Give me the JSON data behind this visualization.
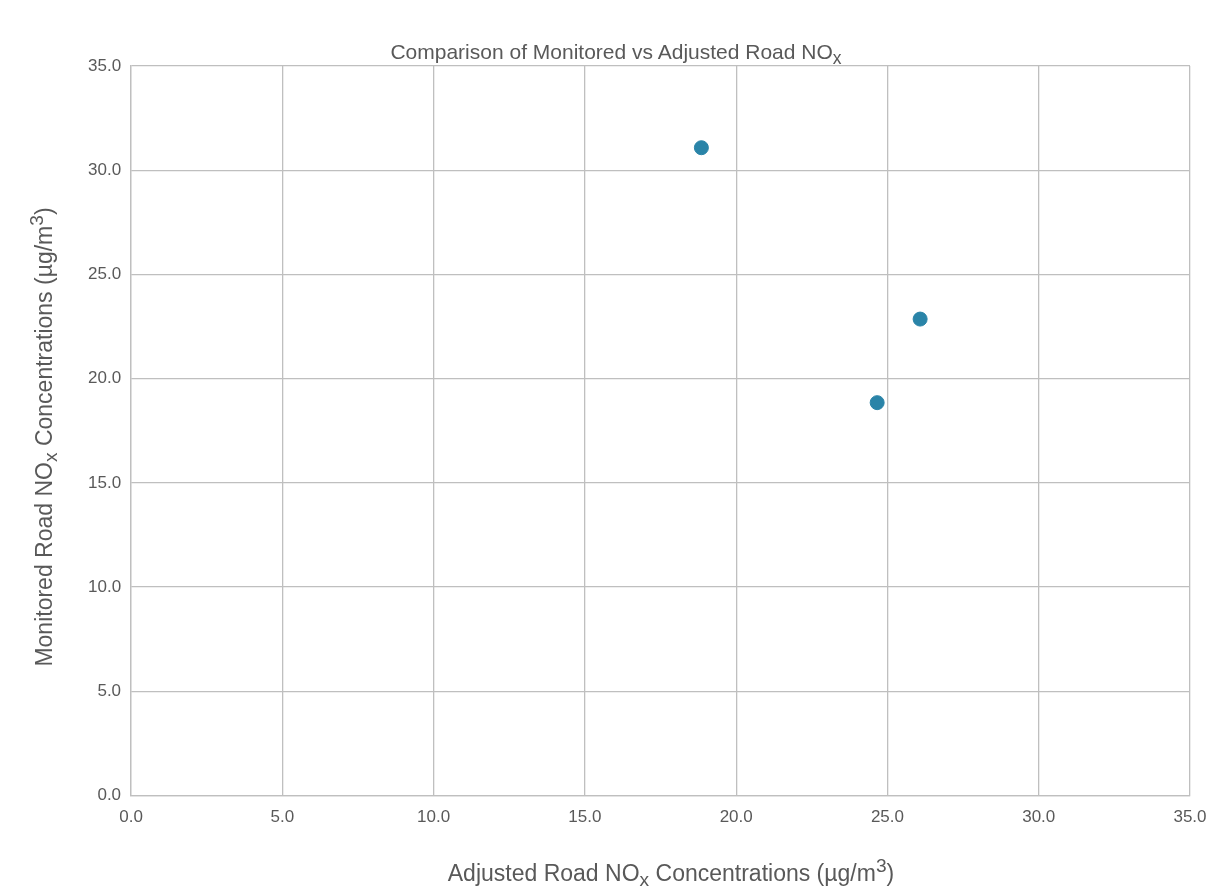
{
  "chart_data": {
    "type": "scatter",
    "title": "Comparison of Monitored vs Adjusted Road NO$_{x}$",
    "xlabel": "Adjusted Road NO$_{x}$ Concentrations (µg/m$^{3}$)",
    "ylabel": "Monitored Road NO$_{x}$ Concentrations (µg/m$^{3}$)",
    "x": [
      18.85,
      26.08,
      24.66
    ],
    "series": [
      {
        "color": "#2a84a8",
        "values": [
          31.08,
          22.86,
          18.85
        ]
      }
    ],
    "xlim": [
      0,
      35
    ],
    "ylim": [
      0,
      35
    ],
    "xticks": [
      {
        "value": 0,
        "label": "0.0"
      },
      {
        "value": 5,
        "label": "5.0"
      },
      {
        "value": 10,
        "label": "10.0"
      },
      {
        "value": 15,
        "label": "15.0"
      },
      {
        "value": 20,
        "label": "20.0"
      },
      {
        "value": 25,
        "label": "25.0"
      },
      {
        "value": 30,
        "label": "30.0"
      },
      {
        "value": 35,
        "label": "35.0"
      }
    ],
    "yticks": [
      {
        "value": 0,
        "label": "0.0"
      },
      {
        "value": 5,
        "label": "5.0"
      },
      {
        "value": 10,
        "label": "10.0"
      },
      {
        "value": 15,
        "label": "15.0"
      },
      {
        "value": 20,
        "label": "20.0"
      },
      {
        "value": 25,
        "label": "25.0"
      },
      {
        "value": 30,
        "label": "30.0"
      },
      {
        "value": 35,
        "label": "35.0"
      }
    ],
    "grid": true,
    "legend": false,
    "marker": "circle"
  }
}
